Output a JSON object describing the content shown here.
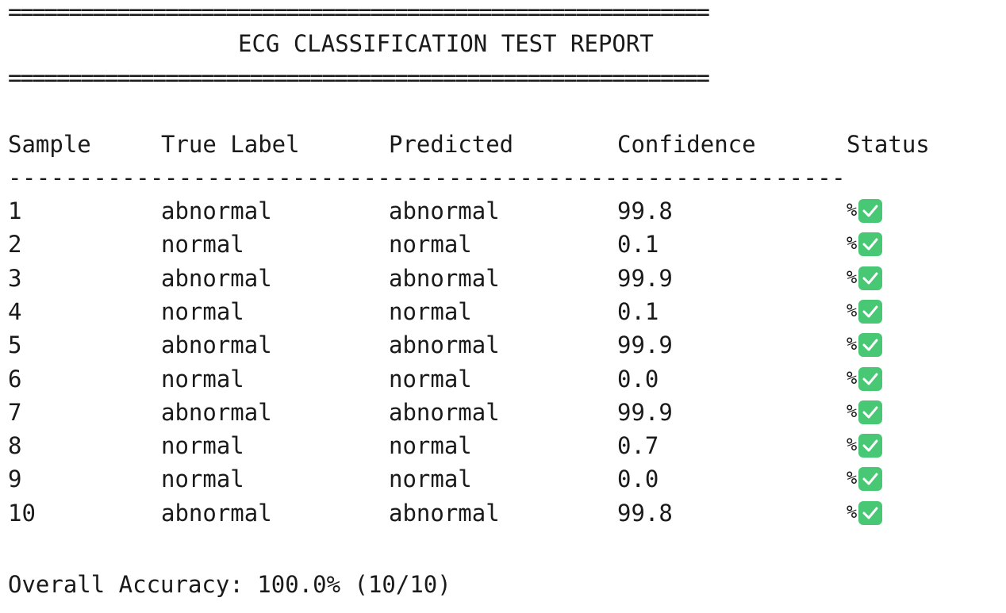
{
  "report": {
    "rule_top": "==========================================================",
    "title": "ECG CLASSIFICATION TEST REPORT",
    "rule_bottom": "==========================================================",
    "separator": "-----------------------------------------------------------"
  },
  "table": {
    "headers": [
      "Sample",
      "True Label",
      "Predicted",
      "Confidence",
      "Status"
    ],
    "rows": [
      {
        "sample": "1",
        "true_label": "abnormal",
        "predicted": "abnormal",
        "confidence": "99.8",
        "status": "%"
      },
      {
        "sample": "2",
        "true_label": "normal",
        "predicted": "normal",
        "confidence": "0.1",
        "status": "%"
      },
      {
        "sample": "3",
        "true_label": "abnormal",
        "predicted": "abnormal",
        "confidence": "99.9",
        "status": "%"
      },
      {
        "sample": "4",
        "true_label": "normal",
        "predicted": "normal",
        "confidence": "0.1",
        "status": "%"
      },
      {
        "sample": "5",
        "true_label": "abnormal",
        "predicted": "abnormal",
        "confidence": "99.9",
        "status": "%"
      },
      {
        "sample": "6",
        "true_label": "normal",
        "predicted": "normal",
        "confidence": "0.0",
        "status": "%"
      },
      {
        "sample": "7",
        "true_label": "abnormal",
        "predicted": "abnormal",
        "confidence": "99.9",
        "status": "%"
      },
      {
        "sample": "8",
        "true_label": "normal",
        "predicted": "normal",
        "confidence": "0.7",
        "status": "%"
      },
      {
        "sample": "9",
        "true_label": "normal",
        "predicted": "normal",
        "confidence": "0.0",
        "status": "%"
      },
      {
        "sample": "10",
        "true_label": "abnormal",
        "predicted": "abnormal",
        "confidence": "99.8",
        "status": "%"
      }
    ],
    "status_icon": "check-mark-icon"
  },
  "summary": {
    "accuracy_text": "Overall Accuracy: 100.0% (10/10)"
  },
  "colors": {
    "check_green": "#48c774",
    "text": "#1a1a1a"
  }
}
